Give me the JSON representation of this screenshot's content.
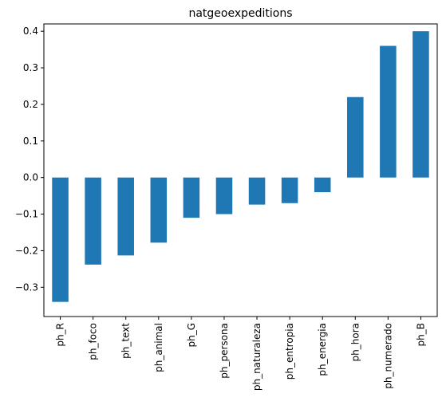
{
  "chart_data": {
    "type": "bar",
    "title": "natgeoexpeditions",
    "xlabel": "",
    "ylabel": "",
    "categories": [
      "ph_R",
      "ph_foco",
      "ph_text",
      "ph_animal",
      "ph_G",
      "ph_persona",
      "ph_naturaleza",
      "ph_entropia",
      "ph_energia",
      "ph_hora",
      "ph_numerado",
      "ph_B"
    ],
    "values": [
      -0.34,
      -0.238,
      -0.213,
      -0.178,
      -0.11,
      -0.1,
      -0.074,
      -0.07,
      -0.04,
      0.22,
      0.36,
      0.4
    ],
    "ylim": [
      -0.38,
      0.42
    ],
    "yticks": [
      -0.3,
      -0.2,
      -0.1,
      0.0,
      0.1,
      0.2,
      0.3,
      0.4
    ],
    "ytick_labels": [
      "−0.3",
      "−0.2",
      "−0.1",
      "0.0",
      "0.1",
      "0.2",
      "0.3",
      "0.4"
    ],
    "grid": false,
    "legend": "none",
    "bar_color": "#1f77b4"
  }
}
